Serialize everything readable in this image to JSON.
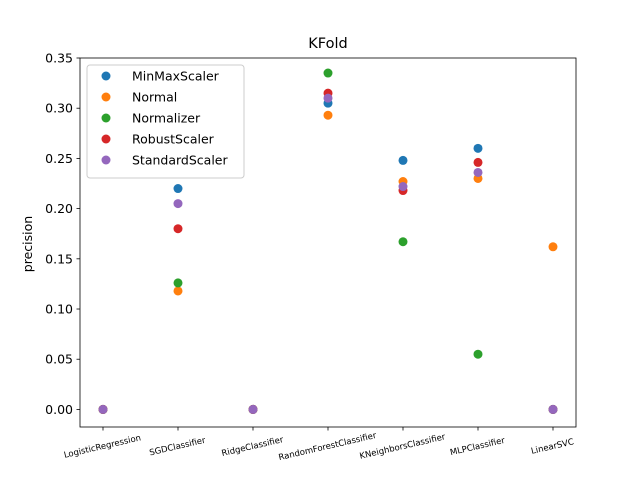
{
  "chart_data": {
    "type": "scatter",
    "title": "KFold",
    "xlabel": "",
    "ylabel": "precision",
    "categories": [
      "LogisticRegression",
      "SGDClassifier",
      "RidgeClassifier",
      "RandomForestClassifier",
      "KNeighborsClassifier",
      "MLPClassifier",
      "LinearSVC"
    ],
    "ylim": [
      -0.0175,
      0.35
    ],
    "yticks": [
      "0.00",
      "0.05",
      "0.10",
      "0.15",
      "0.20",
      "0.25",
      "0.30",
      "0.35"
    ],
    "grid": false,
    "legend_position": "top-left",
    "series": [
      {
        "name": "MinMaxScaler",
        "color": "#1f77b4",
        "values": [
          0.0,
          0.22,
          0.0,
          0.305,
          0.248,
          0.26,
          0.0
        ]
      },
      {
        "name": "Normal",
        "color": "#ff7f0e",
        "values": [
          0.0,
          0.118,
          0.0,
          0.293,
          0.227,
          0.23,
          0.162
        ]
      },
      {
        "name": "Normalizer",
        "color": "#2ca02c",
        "values": [
          0.0,
          0.126,
          0.0,
          0.335,
          0.167,
          0.055,
          0.0
        ]
      },
      {
        "name": "RobustScaler",
        "color": "#d62728",
        "values": [
          0.0,
          0.18,
          0.0,
          0.315,
          0.218,
          0.246,
          0.0
        ]
      },
      {
        "name": "StandardScaler",
        "color": "#9467bd",
        "values": [
          0.0,
          0.205,
          0.0,
          0.31,
          0.222,
          0.236,
          0.0
        ]
      }
    ]
  }
}
